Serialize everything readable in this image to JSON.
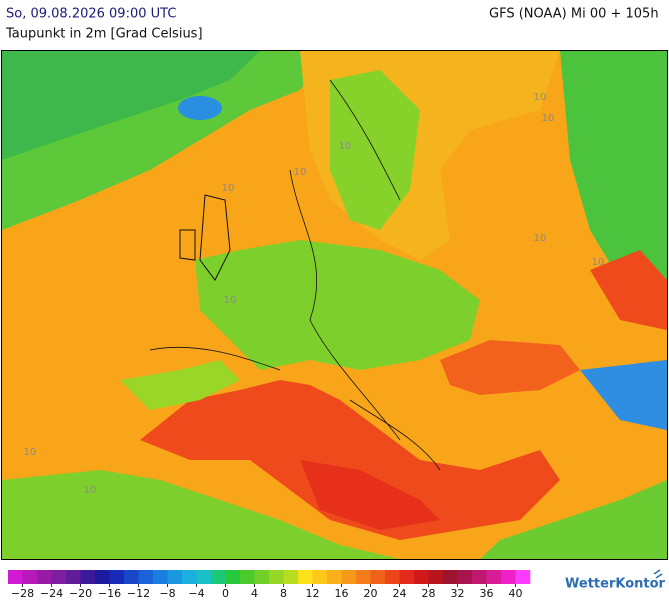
{
  "header": {
    "datetime": "So, 09.08.2026 09:00 UTC",
    "model": "GFS (NOAA) Mi 00 + 105h",
    "parameter": "Taupunkt in 2m [Grad Celsius]"
  },
  "map": {
    "contour_labels": [
      "10",
      "10",
      "10",
      "10",
      "10",
      "10",
      "10",
      "10",
      "10",
      "10"
    ]
  },
  "legend": {
    "lim": [
      -30,
      42
    ],
    "ticks": [
      {
        "value": -28,
        "label": "−28"
      },
      {
        "value": -24,
        "label": "−24"
      },
      {
        "value": -20,
        "label": "−20"
      },
      {
        "value": -16,
        "label": "−16"
      },
      {
        "value": -12,
        "label": "−12"
      },
      {
        "value": -8,
        "label": "−8"
      },
      {
        "value": -4,
        "label": "−4"
      },
      0,
      4,
      8,
      12,
      16,
      20,
      24,
      28,
      32,
      36,
      40
    ],
    "colors": [
      "#d21ad2",
      "#b51ab8",
      "#9a1aa8",
      "#7d1ea0",
      "#5f1e98",
      "#3c1a9a",
      "#1e1a9e",
      "#1a2ab8",
      "#1a46c8",
      "#1a62d8",
      "#1a7ee0",
      "#1a98e0",
      "#1ab0e0",
      "#1ac0c8",
      "#1ac878",
      "#28c83c",
      "#4ccc2c",
      "#70d028",
      "#96d624",
      "#b8dc20",
      "#fce01a",
      "#fcc81a",
      "#fab01a",
      "#f8981a",
      "#f47c1a",
      "#f0621a",
      "#ec461a",
      "#e42a1a",
      "#d01a1a",
      "#b8141e",
      "#9c1430",
      "#a8144e",
      "#c0186e",
      "#d81c98",
      "#f020c8",
      "#fc3cfc"
    ]
  },
  "footer": {
    "logo": "WetterKontor"
  }
}
